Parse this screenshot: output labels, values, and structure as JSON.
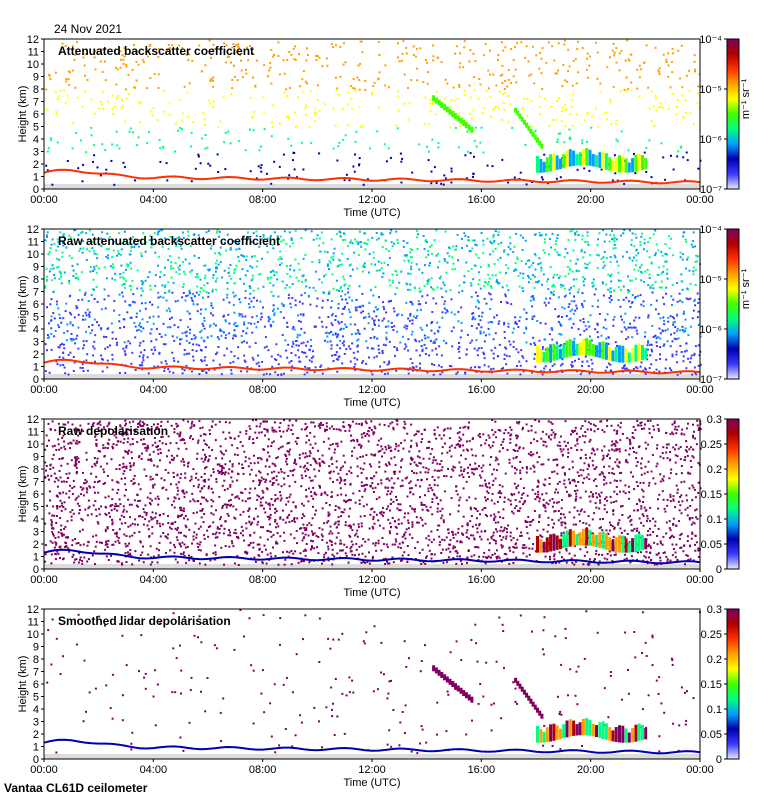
{
  "header": {
    "date": "24 Nov 2021"
  },
  "footer": {
    "instrument": "Vantaa CL61D ceilometer"
  },
  "colors": {
    "background": "#ffffff",
    "no_data": "#dcdcdc",
    "colormap": [
      "#e8e8ff",
      "#3a3aff",
      "#0000b0",
      "#00a0ff",
      "#00ff80",
      "#40ff00",
      "#ffff00",
      "#ffa000",
      "#ff3000",
      "#b00000",
      "#800060"
    ]
  },
  "chart_data": [
    {
      "type": "heatmap",
      "title": "Attenuated backscatter coefficient",
      "xlabel": "Time (UTC)",
      "ylabel": "Height (km)",
      "xticks": [
        "00:00",
        "04:00",
        "08:00",
        "12:00",
        "16:00",
        "20:00",
        "00:00"
      ],
      "xlim": [
        0,
        24
      ],
      "ylim": [
        0,
        12
      ],
      "yticks": [
        "0",
        "1",
        "2",
        "3",
        "4",
        "5",
        "6",
        "7",
        "8",
        "9",
        "10",
        "11",
        "12"
      ],
      "colorbar": {
        "scale": "log",
        "range": [
          1e-07,
          0.0001
        ],
        "unit": "m⁻¹ sr⁻¹",
        "ticks": [
          "10⁻⁴",
          "10⁻⁵",
          "10⁻⁶",
          "10⁻⁷"
        ]
      }
    },
    {
      "type": "heatmap",
      "title": "Raw attenuated backscatter coefficient",
      "xlabel": "Time (UTC)",
      "ylabel": "Height (km)",
      "xticks": [
        "00:00",
        "04:00",
        "08:00",
        "12:00",
        "16:00",
        "20:00",
        "00:00"
      ],
      "xlim": [
        0,
        24
      ],
      "ylim": [
        0,
        12
      ],
      "yticks": [
        "0",
        "1",
        "2",
        "3",
        "4",
        "5",
        "6",
        "7",
        "8",
        "9",
        "10",
        "11",
        "12"
      ],
      "colorbar": {
        "scale": "log",
        "range": [
          1e-07,
          0.0001
        ],
        "unit": "m⁻¹ sr⁻¹",
        "ticks": [
          "10⁻⁴",
          "10⁻⁵",
          "10⁻⁶",
          "10⁻⁷"
        ]
      }
    },
    {
      "type": "heatmap",
      "title": "Raw depolarisation",
      "xlabel": "Time (UTC)",
      "ylabel": "Height (km)",
      "xticks": [
        "00:00",
        "04:00",
        "08:00",
        "12:00",
        "16:00",
        "20:00",
        "00:00"
      ],
      "xlim": [
        0,
        24
      ],
      "ylim": [
        0,
        12
      ],
      "yticks": [
        "0",
        "1",
        "2",
        "3",
        "4",
        "5",
        "6",
        "7",
        "8",
        "9",
        "10",
        "11",
        "12"
      ],
      "colorbar": {
        "scale": "linear",
        "range": [
          0,
          0.3
        ],
        "unit": "",
        "ticks": [
          "0.3",
          "0.25",
          "0.2",
          "0.15",
          "0.1",
          "0.05",
          "0"
        ]
      }
    },
    {
      "type": "heatmap",
      "title": "Smoothed lidar depolarisation",
      "xlabel": "Time (UTC)",
      "ylabel": "Height (km)",
      "xticks": [
        "00:00",
        "04:00",
        "08:00",
        "12:00",
        "16:00",
        "20:00",
        "00:00"
      ],
      "xlim": [
        0,
        24
      ],
      "ylim": [
        0,
        12
      ],
      "yticks": [
        "0",
        "1",
        "2",
        "3",
        "4",
        "5",
        "6",
        "7",
        "8",
        "9",
        "10",
        "11",
        "12"
      ],
      "colorbar": {
        "scale": "linear",
        "range": [
          0,
          0.3
        ],
        "unit": "",
        "ticks": [
          "0.3",
          "0.25",
          "0.2",
          "0.15",
          "0.1",
          "0.05",
          "0"
        ]
      }
    }
  ]
}
